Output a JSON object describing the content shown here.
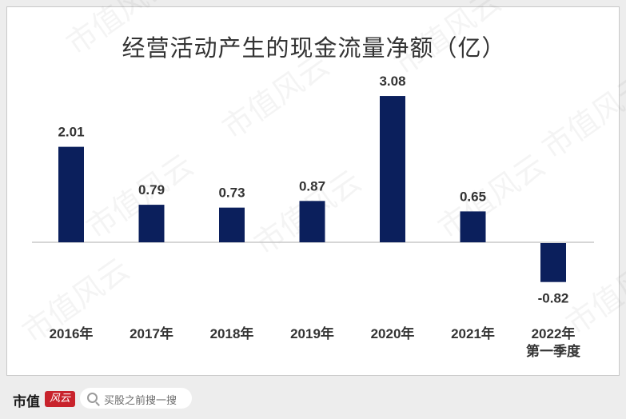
{
  "watermark": "市值风云",
  "chart_data": {
    "type": "bar",
    "title": "经营活动产生的现金流量净额（亿）",
    "categories": [
      "2016年",
      "2017年",
      "2018年",
      "2019年",
      "2020年",
      "2021年",
      "2022年第一季度"
    ],
    "category_lines": [
      [
        "2016年"
      ],
      [
        "2017年"
      ],
      [
        "2018年"
      ],
      [
        "2019年"
      ],
      [
        "2020年"
      ],
      [
        "2021年"
      ],
      [
        "2022年",
        "第一季度"
      ]
    ],
    "values": [
      2.01,
      0.79,
      0.73,
      0.87,
      3.08,
      0.65,
      -0.82
    ],
    "value_labels": [
      "2.01",
      "0.79",
      "0.73",
      "0.87",
      "3.08",
      "0.65",
      "-0.82"
    ],
    "bar_color": "#0b1f5c",
    "grid": false,
    "legend": "none"
  },
  "footer": {
    "brand_name": "市值",
    "brand_logo": "风云",
    "search_placeholder": "买股之前搜一搜"
  }
}
